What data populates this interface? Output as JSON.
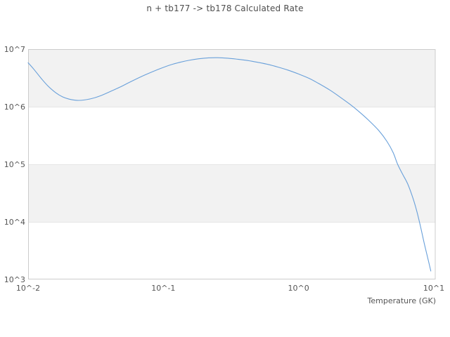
{
  "page": {
    "background_color": "#ffffff"
  },
  "chart_data": {
    "type": "line",
    "title": "n + tb177 -> tb178 Calculated Rate",
    "xlabel": "Temperature (GK)",
    "ylabel": "",
    "x_scale": "log",
    "y_scale": "log",
    "xlim_log": [
      -2,
      1.013
    ],
    "ylim_log": [
      3,
      7
    ],
    "x_ticks": [
      {
        "value": 0.01,
        "label": "10^-2"
      },
      {
        "value": 0.1,
        "label": "10^-1"
      },
      {
        "value": 1,
        "label": "10^0"
      },
      {
        "value": 10,
        "label": "10^1"
      }
    ],
    "y_ticks": [
      {
        "value": 1000,
        "label": "10^3"
      },
      {
        "value": 10000,
        "label": "10^4"
      },
      {
        "value": 100000,
        "label": "10^5"
      },
      {
        "value": 1000000,
        "label": "10^6"
      },
      {
        "value": 10000000,
        "label": "10^7"
      }
    ],
    "grid": "horizontal-decade-lines-with-alternating-bands",
    "legend": "none",
    "colors": {
      "line": "#69a0da",
      "band": "#f2f2f2",
      "grid_line": "#e5e5e5",
      "axis_border": "#cccccc",
      "text": "#555555",
      "title_text": "#4d4d4d"
    },
    "series": [
      {
        "name": "calculated rate",
        "color": "#69a0da",
        "points": [
          [
            0.01,
            5800000
          ],
          [
            0.011,
            4500000
          ],
          [
            0.0125,
            3100000
          ],
          [
            0.014,
            2300000
          ],
          [
            0.016,
            1750000
          ],
          [
            0.018,
            1480000
          ],
          [
            0.02,
            1360000
          ],
          [
            0.023,
            1290000
          ],
          [
            0.026,
            1310000
          ],
          [
            0.03,
            1400000
          ],
          [
            0.035,
            1580000
          ],
          [
            0.041,
            1860000
          ],
          [
            0.048,
            2200000
          ],
          [
            0.057,
            2700000
          ],
          [
            0.068,
            3300000
          ],
          [
            0.08,
            3900000
          ],
          [
            0.095,
            4600000
          ],
          [
            0.112,
            5300000
          ],
          [
            0.132,
            5900000
          ],
          [
            0.155,
            6400000
          ],
          [
            0.183,
            6800000
          ],
          [
            0.215,
            7050000
          ],
          [
            0.253,
            7100000
          ],
          [
            0.3,
            6950000
          ],
          [
            0.35,
            6700000
          ],
          [
            0.42,
            6350000
          ],
          [
            0.5,
            5900000
          ],
          [
            0.6,
            5400000
          ],
          [
            0.71,
            4850000
          ],
          [
            0.84,
            4300000
          ],
          [
            1.0,
            3700000
          ],
          [
            1.2,
            3100000
          ],
          [
            1.4,
            2550000
          ],
          [
            1.7,
            1950000
          ],
          [
            2.0,
            1500000
          ],
          [
            2.4,
            1100000
          ],
          [
            2.8,
            820000
          ],
          [
            3.3,
            580000
          ],
          [
            3.9,
            390000
          ],
          [
            4.5,
            250000
          ],
          [
            5.0,
            160000
          ],
          [
            5.4,
            100000
          ],
          [
            5.9,
            66000
          ],
          [
            6.4,
            46000
          ],
          [
            7.0,
            26000
          ],
          [
            7.5,
            15000
          ],
          [
            8.0,
            8000
          ],
          [
            8.5,
            4200
          ],
          [
            9.0,
            2400
          ],
          [
            9.5,
            1400
          ]
        ]
      }
    ]
  }
}
